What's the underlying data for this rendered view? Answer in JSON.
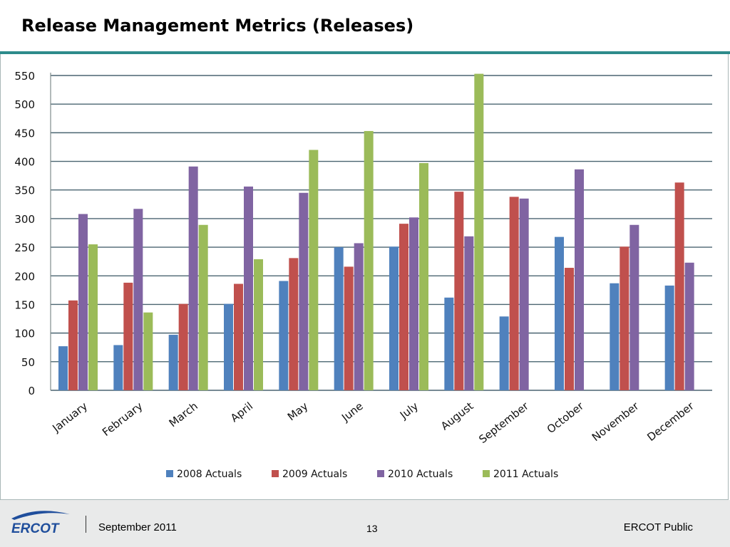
{
  "slide": {
    "title": "Release Management Metrics (Releases)"
  },
  "footer": {
    "logo_text": "ERCOT",
    "date": "September 2011",
    "page_number": "13",
    "classification": "ERCOT Public"
  },
  "colors": {
    "title_rule": "#2e8b8b",
    "2008": "#4f81bd",
    "2009": "#c0504d",
    "2010": "#8064a2",
    "2011": "#9bbb59",
    "gridline": "#4a6470",
    "logo_blue": "#1f4e9c"
  },
  "chart_data": {
    "type": "bar",
    "title": "",
    "xlabel": "",
    "ylabel": "",
    "ylim": [
      0,
      550
    ],
    "yticks": [
      0,
      50,
      100,
      150,
      200,
      250,
      300,
      350,
      400,
      450,
      500,
      550
    ],
    "grid": true,
    "legend_position": "bottom",
    "categories": [
      "January",
      "February",
      "March",
      "April",
      "May",
      "June",
      "July",
      "August",
      "September",
      "October",
      "November",
      "December"
    ],
    "series": [
      {
        "name": "2008 Actuals",
        "color": "#4f81bd",
        "values": [
          77,
          79,
          97,
          151,
          191,
          250,
          251,
          162,
          129,
          268,
          187,
          183
        ]
      },
      {
        "name": "2009 Actuals",
        "color": "#c0504d",
        "values": [
          157,
          188,
          151,
          186,
          231,
          216,
          291,
          347,
          338,
          214,
          251,
          363
        ]
      },
      {
        "name": "2010 Actuals",
        "color": "#8064a2",
        "values": [
          308,
          317,
          391,
          356,
          345,
          257,
          302,
          269,
          335,
          386,
          289,
          223
        ]
      },
      {
        "name": "2011 Actuals",
        "color": "#9bbb59",
        "values": [
          255,
          136,
          289,
          229,
          420,
          453,
          397,
          553,
          null,
          null,
          null,
          null
        ]
      }
    ]
  }
}
